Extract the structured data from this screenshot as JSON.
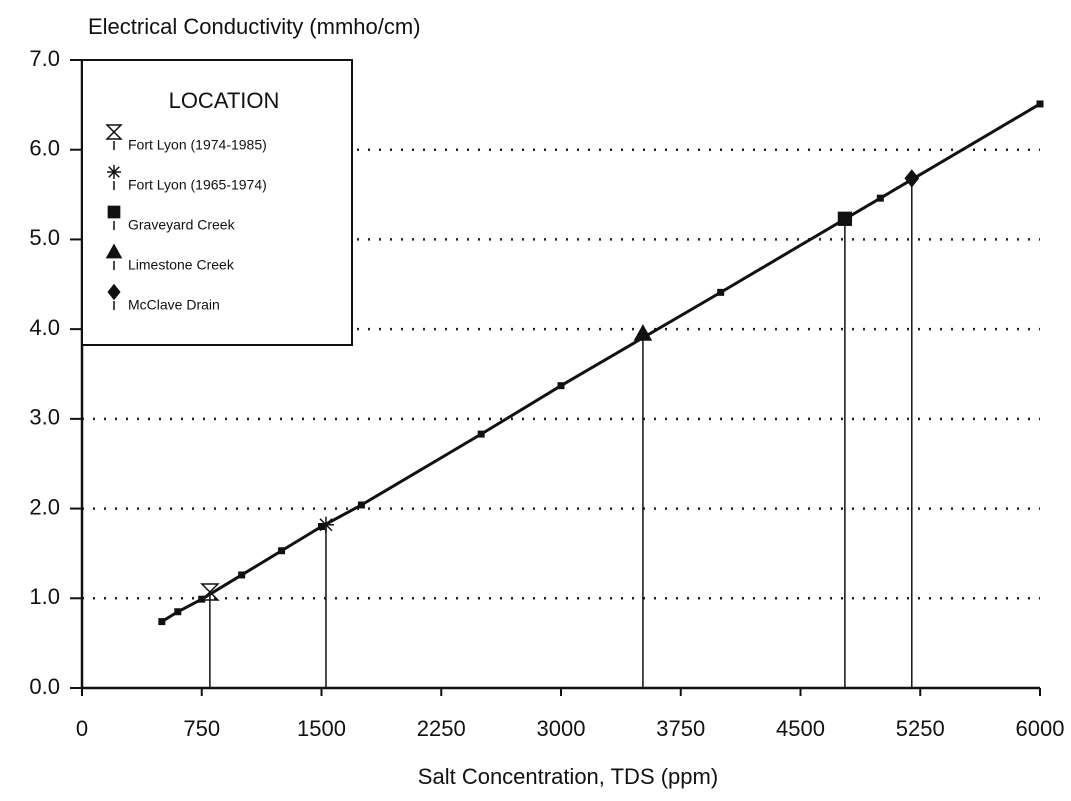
{
  "chart_data": {
    "type": "line",
    "title": "Electrical Conductivity  (mmho/cm)",
    "x_label": "Salt Concentration, TDS  (ppm)",
    "x": [
      500,
      600,
      750,
      1000,
      1250,
      1500,
      1750,
      2500,
      3000,
      4000,
      5000,
      6000
    ],
    "values": [
      0.74,
      0.85,
      0.99,
      1.26,
      1.53,
      1.8,
      2.04,
      2.83,
      3.37,
      4.41,
      5.46,
      6.51
    ],
    "color": "#111111",
    "xlim": [
      0,
      6000
    ],
    "xticks": [
      0,
      750,
      1500,
      2250,
      3000,
      3750,
      4500,
      5250,
      6000
    ],
    "ylim": [
      0,
      7
    ],
    "yticks": [
      {
        "value": 0,
        "label": "0.0"
      },
      {
        "value": 1,
        "label": "1.0"
      },
      {
        "value": 2,
        "label": "2.0"
      },
      {
        "value": 3,
        "label": "3.0"
      },
      {
        "value": 4,
        "label": "4.0"
      },
      {
        "value": 5,
        "label": "5.0"
      },
      {
        "value": 6,
        "label": "6.0"
      },
      {
        "value": 7,
        "label": "7.0"
      }
    ],
    "grid": true,
    "legend": {
      "title": "LOCATION",
      "position": "upper left"
    },
    "locations": [
      {
        "name": "Fort Lyon (1974-1985)",
        "marker": "hourglass",
        "x": 801,
        "y": 1.07
      },
      {
        "name": "Fort Lyon (1965-1974)",
        "marker": "asterisk",
        "x": 1528,
        "y": 1.82
      },
      {
        "name": "Graveyard Creek",
        "marker": "square",
        "x": 4778,
        "y": 5.23
      },
      {
        "name": "Limestone Creek",
        "marker": "triangle",
        "x": 3513,
        "y": 3.95
      },
      {
        "name": "McClave Drain",
        "marker": "diamond",
        "x": 5197,
        "y": 5.68
      }
    ]
  }
}
